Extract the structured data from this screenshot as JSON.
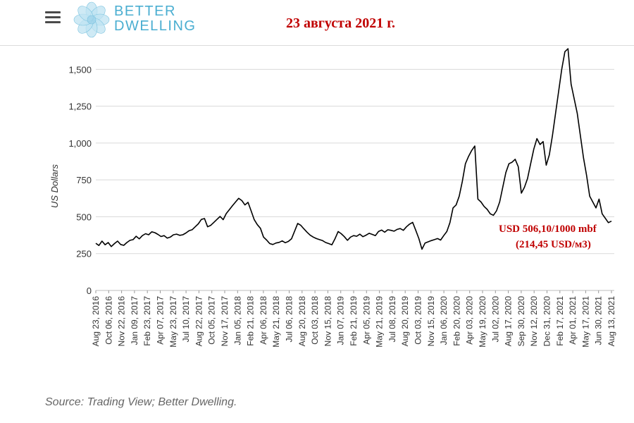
{
  "header": {
    "logo_line1": "BETTER",
    "logo_line2": "DWELLING",
    "date": "23 августа 2021 г."
  },
  "colors": {
    "accent": "#4aaed1",
    "annotation": "#c00000",
    "line": "#000000",
    "grid": "#d9d9d9"
  },
  "icons": {
    "menu": "hamburger-icon",
    "logo": "flower-logo-icon"
  },
  "annotation": {
    "line1": "USD 506,10/1000 mbf",
    "line2": "(214,45 USD/м3)"
  },
  "source": "Source: Trading View; Better Dwelling.",
  "chart_data": {
    "type": "line",
    "ylabel": "US Dollars",
    "ylim": [
      0,
      1650
    ],
    "yticks": [
      0,
      250,
      500,
      750,
      "1,000",
      "1,250",
      "1,500"
    ],
    "yticks_values": [
      0,
      250,
      500,
      750,
      1000,
      1250,
      1500
    ],
    "grid": true,
    "x_tick_labels": [
      "Aug 23, 2016",
      "Oct 06, 2016",
      "Nov 22, 2016",
      "Jan 09, 2017",
      "Feb 23, 2017",
      "Apr 07, 2017",
      "May 23, 2017",
      "Jul 10, 2017",
      "Aug 22, 2017",
      "Oct 05, 2017",
      "Nov 17, 2017",
      "Jan 05, 2018",
      "Feb 21, 2018",
      "Apr 06, 2018",
      "May 21, 2018",
      "Jul 06, 2018",
      "Aug 20, 2018",
      "Oct 03, 2018",
      "Nov 15, 2018",
      "Jan 07, 2019",
      "Feb 21, 2019",
      "Apr 05, 2019",
      "May 21, 2019",
      "Jul 08, 2019",
      "Aug 20, 2019",
      "Oct 03, 2019",
      "Nov 15, 2019",
      "Jan 06, 2020",
      "Feb 20, 2020",
      "Apr 03, 2020",
      "May 19, 2020",
      "Jul 02, 2020",
      "Aug 17, 2020",
      "Sep 30, 2020",
      "Nov 12, 2020",
      "Dec 31, 2020",
      "Feb 17, 2021",
      "Apr 01, 2021",
      "May 17, 2021",
      "Jun 30, 2021",
      "Aug 13, 2021"
    ],
    "series": [
      {
        "values": [
          320,
          305,
          335,
          310,
          325,
          298,
          318,
          335,
          312,
          306,
          325,
          340,
          345,
          368,
          350,
          372,
          385,
          378,
          398,
          392,
          380,
          366,
          372,
          355,
          362,
          378,
          382,
          374,
          378,
          390,
          405,
          412,
          432,
          452,
          482,
          488,
          432,
          442,
          462,
          482,
          502,
          480,
          522,
          548,
          575,
          600,
          625,
          610,
          580,
          598,
          540,
          480,
          446,
          422,
          362,
          342,
          318,
          312,
          322,
          326,
          336,
          324,
          333,
          350,
          402,
          455,
          442,
          418,
          395,
          375,
          362,
          352,
          345,
          338,
          325,
          318,
          310,
          350,
          400,
          385,
          365,
          340,
          362,
          372,
          368,
          382,
          365,
          375,
          388,
          380,
          372,
          400,
          410,
          395,
          412,
          408,
          402,
          414,
          420,
          408,
          432,
          450,
          462,
          408,
          352,
          280,
          322,
          330,
          338,
          345,
          352,
          342,
          372,
          400,
          460,
          560,
          580,
          640,
          740,
          860,
          910,
          950,
          980,
          620,
          600,
          570,
          550,
          520,
          510,
          540,
          600,
          700,
          800,
          860,
          870,
          890,
          840,
          660,
          700,
          760,
          860,
          960,
          1030,
          990,
          1010,
          850,
          920,
          1050,
          1200,
          1350,
          1500,
          1620,
          1640,
          1400,
          1300,
          1200,
          1050,
          900,
          780,
          640,
          600,
          560,
          620,
          520,
          490,
          460,
          470
        ]
      }
    ]
  }
}
